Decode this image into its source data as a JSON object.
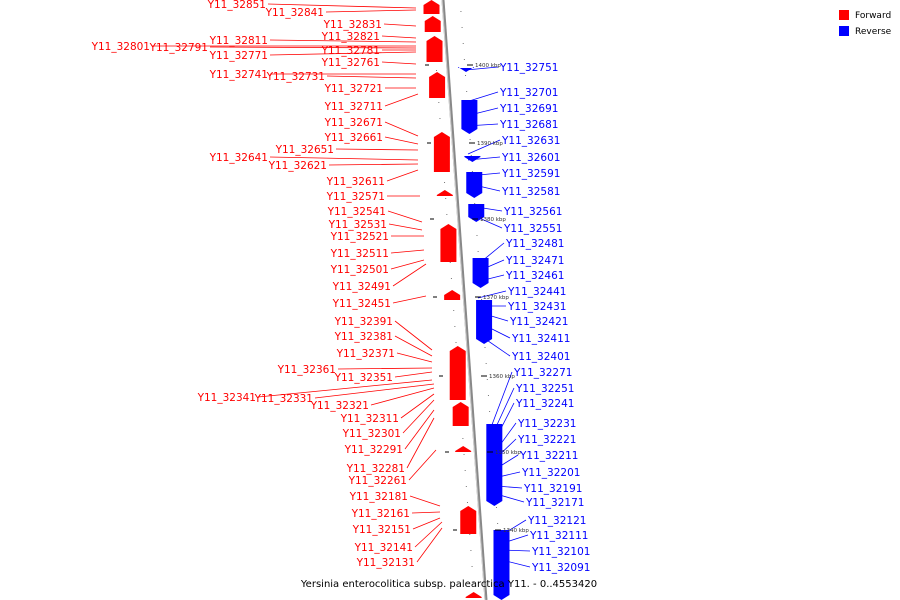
{
  "title": "Yersinia enterocolitica subsp. palearctica Y11. - 0..4553420",
  "legend": [
    {
      "label": "Forward",
      "color": "#ff0000"
    },
    {
      "label": "Reverse",
      "color": "#0000ff"
    }
  ],
  "colors": {
    "forward": "#ff0000",
    "reverse": "#0000ff",
    "backbone": "#999999"
  },
  "ticks": [
    "1400 kbp",
    "1390 kbp",
    "1380 kbp",
    "1370 kbp",
    "1360 kbp",
    "1350 kbp",
    "1340 kbp"
  ],
  "forward_genes": [
    "Y11_32851",
    "Y11_32841",
    "Y11_32831",
    "Y11_32821",
    "Y11_32811",
    "Y11_32801",
    "Y11_32791",
    "Y11_32781",
    "Y11_32771",
    "Y11_32761",
    "Y11_32741",
    "Y11_32731",
    "Y11_32721",
    "Y11_32711",
    "Y11_32671",
    "Y11_32661",
    "Y11_32651",
    "Y11_32641",
    "Y11_32621",
    "Y11_32611",
    "Y11_32571",
    "Y11_32541",
    "Y11_32531",
    "Y11_32521",
    "Y11_32511",
    "Y11_32501",
    "Y11_32491",
    "Y11_32451",
    "Y11_32391",
    "Y11_32381",
    "Y11_32371",
    "Y11_32361",
    "Y11_32351",
    "Y11_32341",
    "Y11_32331",
    "Y11_32321",
    "Y11_32311",
    "Y11_32301",
    "Y11_32291",
    "Y11_32281",
    "Y11_32261",
    "Y11_32181",
    "Y11_32161",
    "Y11_32151",
    "Y11_32141",
    "Y11_32131"
  ],
  "reverse_genes": [
    "Y11_32751",
    "Y11_32701",
    "Y11_32691",
    "Y11_32681",
    "Y11_32631",
    "Y11_32601",
    "Y11_32591",
    "Y11_32581",
    "Y11_32561",
    "Y11_32551",
    "Y11_32481",
    "Y11_32471",
    "Y11_32461",
    "Y11_32441",
    "Y11_32431",
    "Y11_32421",
    "Y11_32411",
    "Y11_32401",
    "Y11_32271",
    "Y11_32251",
    "Y11_32241",
    "Y11_32231",
    "Y11_32221",
    "Y11_32211",
    "Y11_32201",
    "Y11_32191",
    "Y11_32171",
    "Y11_32121",
    "Y11_32111",
    "Y11_32101",
    "Y11_32091"
  ]
}
